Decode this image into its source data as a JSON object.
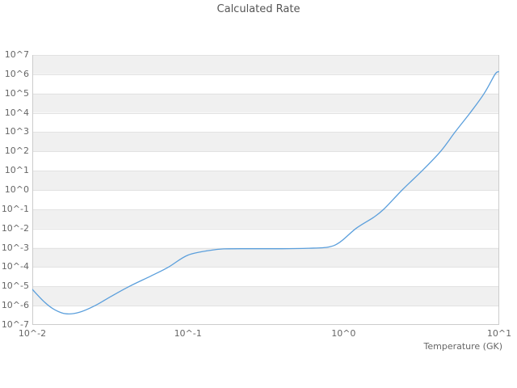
{
  "title": "Calculated Rate",
  "colors": {
    "line": "#5b9fdc",
    "band": "#f0f0f0",
    "band_alt": "#ffffff",
    "gridline": "#e2e2e2",
    "spine": "#cccccc",
    "title_text": "#555555",
    "tick_text": "#666666"
  },
  "chart_data": {
    "type": "line",
    "title": "Calculated Rate",
    "xlabel": "Temperature (GK)",
    "ylabel": "",
    "x_scale": "log",
    "y_scale": "log",
    "xlim": [
      0.01,
      10
    ],
    "ylim": [
      1e-07,
      10000000.0
    ],
    "x_tick_labels": [
      "10^-2",
      "10^-1",
      "10^0",
      "10^1"
    ],
    "y_tick_labels": [
      "10^7",
      "10^6",
      "10^5",
      "10^4",
      "10^3",
      "10^2",
      "10^1",
      "10^0",
      "10^-1",
      "10^-2",
      "10^-3",
      "10^-4",
      "10^-5",
      "10^-6",
      "10^-7"
    ],
    "grid": "horizontal-decade-bands-alternating",
    "legend": "none",
    "series": [
      {
        "name": "calculated-rate",
        "color": "#5b9fdc",
        "points": [
          [
            0.01,
            7e-06
          ],
          [
            0.012,
            1.5e-06
          ],
          [
            0.014,
            6e-07
          ],
          [
            0.0165,
            3.8e-07
          ],
          [
            0.02,
            4.5e-07
          ],
          [
            0.0253,
            1e-06
          ],
          [
            0.032,
            3e-06
          ],
          [
            0.042,
            1e-05
          ],
          [
            0.058,
            3.5e-05
          ],
          [
            0.075,
            0.0001
          ],
          [
            0.1,
            0.00042
          ],
          [
            0.14,
            0.00075
          ],
          [
            0.17,
            0.00088
          ],
          [
            0.25,
            0.0009
          ],
          [
            0.4,
            0.0009
          ],
          [
            0.6,
            0.00095
          ],
          [
            0.8,
            0.0011
          ],
          [
            0.95,
            0.002
          ],
          [
            1.2,
            0.01
          ],
          [
            1.55,
            0.037
          ],
          [
            1.81,
            0.1
          ],
          [
            2.38,
            1.0
          ],
          [
            3.2,
            10
          ],
          [
            4.2,
            100
          ],
          [
            5.2,
            1000
          ],
          [
            6.5,
            10000.0
          ],
          [
            8.0,
            100000.0
          ],
          [
            9.4,
            1000000.0
          ],
          [
            9.9,
            1350000.0
          ]
        ]
      }
    ]
  }
}
